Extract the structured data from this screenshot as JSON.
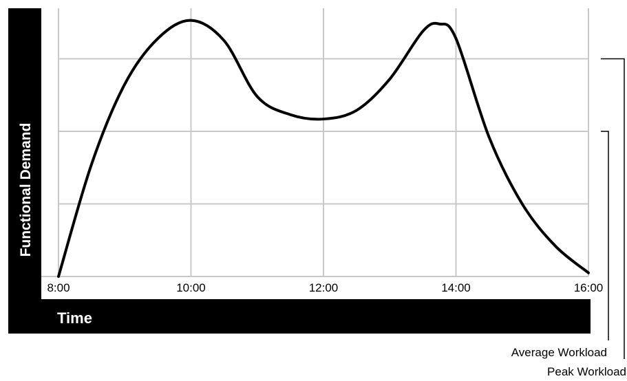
{
  "chart_data": {
    "type": "line",
    "xlabel": "Time",
    "ylabel": "Functional Demand",
    "x_ticks": [
      "8:00",
      "10:00",
      "12:00",
      "14:00",
      "16:00"
    ],
    "xlim": [
      8,
      16
    ],
    "ylim": [
      0,
      4
    ],
    "grid": true,
    "series": [
      {
        "x": [
          8.0,
          8.5,
          9.0,
          9.5,
          10.0,
          10.5,
          11.0,
          11.5,
          12.0,
          12.5,
          13.0,
          13.5,
          13.75,
          14.0,
          14.5,
          15.0,
          15.5,
          16.0
        ],
        "y": [
          0.0,
          1.55,
          2.65,
          3.28,
          3.53,
          3.25,
          2.48,
          2.23,
          2.17,
          2.29,
          2.72,
          3.38,
          3.48,
          3.28,
          1.92,
          1.0,
          0.42,
          0.05
        ]
      }
    ],
    "annotations": [
      {
        "text": "Average Workload",
        "y": 3.0
      },
      {
        "text": "Peak Workload",
        "y": 4.0
      }
    ]
  },
  "colors": {
    "line": "#000000",
    "grid": "#c8c8c8",
    "frame": "#000000",
    "frame_text": "#ffffff"
  }
}
